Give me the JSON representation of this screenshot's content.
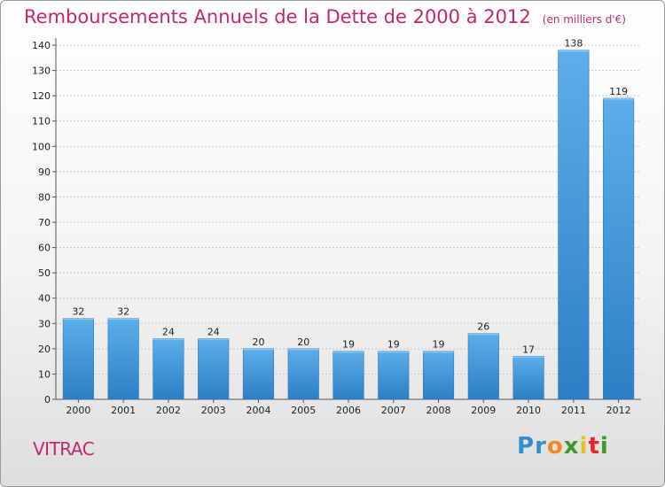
{
  "header": {
    "title": "Remboursements Annuels de la Dette de 2000 à 2012",
    "unit": "(en milliers d'€)"
  },
  "footer": {
    "commune": "VITRAC",
    "logo_letters": [
      "P",
      "r",
      "o",
      "x",
      "i",
      "t",
      "i"
    ],
    "logo_colors": [
      "#2f8fd0",
      "#2f8fd0",
      "#f18a1c",
      "#3c9a2f",
      "#e8c21a",
      "#e8232b",
      "#3c9a2f"
    ]
  },
  "colors": {
    "accent": "#c5266a",
    "bar_light": "#5daeea",
    "bar_dark": "#2d7ec4"
  },
  "chart_data": {
    "type": "bar",
    "title": "Remboursements Annuels de la Dette de 2000 à 2012",
    "xlabel": "",
    "ylabel": "",
    "categories": [
      "2000",
      "2001",
      "2002",
      "2003",
      "2004",
      "2005",
      "2006",
      "2007",
      "2008",
      "2009",
      "2010",
      "2011",
      "2012"
    ],
    "values": [
      32,
      32,
      24,
      24,
      20,
      20,
      19,
      19,
      19,
      26,
      17,
      138,
      119
    ],
    "ylim": [
      0,
      140
    ],
    "yticks": [
      0,
      10,
      20,
      30,
      40,
      50,
      60,
      70,
      80,
      90,
      100,
      110,
      120,
      130,
      140
    ],
    "grid": true,
    "legend": "none"
  }
}
